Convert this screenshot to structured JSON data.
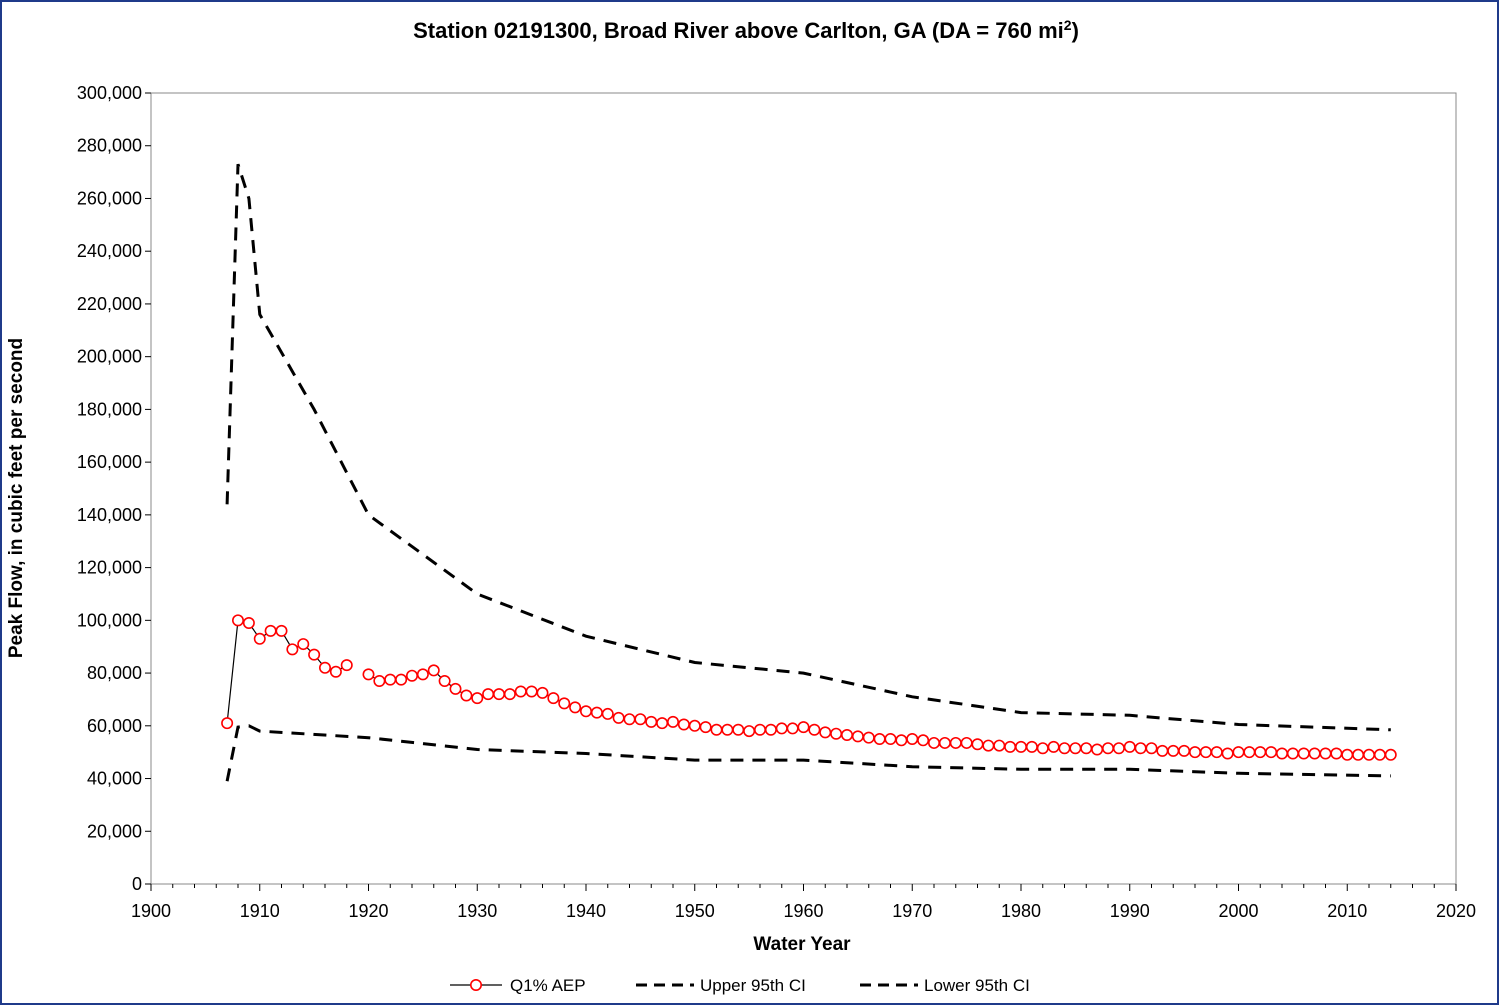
{
  "chart_data": {
    "type": "line",
    "title": "Station 02191300, Broad River above Carlton, GA (DA = 760 mi",
    "title_superscript": "2",
    "title_suffix": ")",
    "xlabel": "Water Year",
    "ylabel": "Peak Flow, in cubic feet per second",
    "xlim": [
      1900,
      2020
    ],
    "ylim": [
      0,
      300000
    ],
    "x_ticks": [
      1900,
      1910,
      1920,
      1930,
      1940,
      1950,
      1960,
      1970,
      1980,
      1990,
      2000,
      2010,
      2020
    ],
    "x_tick_labels": [
      "1900",
      "1910",
      "1920",
      "1930",
      "1940",
      "1950",
      "1960",
      "1970",
      "1980",
      "1990",
      "2000",
      "2010",
      "2020"
    ],
    "y_ticks": [
      0,
      20000,
      40000,
      60000,
      80000,
      100000,
      120000,
      140000,
      160000,
      180000,
      200000,
      220000,
      240000,
      260000,
      280000,
      300000
    ],
    "y_tick_labels": [
      "0",
      "20,000",
      "40,000",
      "60,000",
      "80,000",
      "100,000",
      "120,000",
      "140,000",
      "160,000",
      "180,000",
      "200,000",
      "220,000",
      "240,000",
      "260,000",
      "280,000",
      "300,000"
    ],
    "grid": false,
    "legend_position": "bottom",
    "series": [
      {
        "name": "Q1% AEP",
        "style": "solid-line-open-circles",
        "color": "#000000",
        "marker_color": "#ff0000",
        "segments": [
          {
            "x": [
              1907,
              1908,
              1909,
              1910,
              1911,
              1912,
              1913,
              1914,
              1915,
              1916,
              1917,
              1918
            ],
            "y": [
              61000,
              100000,
              99000,
              93000,
              96000,
              96000,
              89000,
              91000,
              87000,
              82000,
              80500,
              83000
            ]
          },
          {
            "x": [
              1920,
              1921,
              1922,
              1923,
              1924,
              1925,
              1926,
              1927,
              1928,
              1929,
              1930,
              1931,
              1932,
              1933,
              1934,
              1935,
              1936,
              1937,
              1938,
              1939,
              1940,
              1941,
              1942,
              1943,
              1944,
              1945,
              1946,
              1947,
              1948,
              1949,
              1950,
              1951,
              1952,
              1953,
              1954,
              1955,
              1956,
              1957,
              1958,
              1959,
              1960,
              1961,
              1962,
              1963,
              1964,
              1965,
              1966,
              1967,
              1968,
              1969,
              1970,
              1971,
              1972,
              1973,
              1974,
              1975,
              1976,
              1977,
              1978,
              1979,
              1980,
              1981,
              1982,
              1983,
              1984,
              1985,
              1986,
              1987,
              1988,
              1989,
              1990,
              1991,
              1992,
              1993,
              1994,
              1995,
              1996,
              1997,
              1998,
              1999,
              2000,
              2001,
              2002,
              2003,
              2004,
              2005,
              2006,
              2007,
              2008,
              2009,
              2010,
              2011,
              2012,
              2013,
              2014
            ],
            "y": [
              79500,
              77000,
              77500,
              77500,
              79000,
              79500,
              81000,
              77000,
              74000,
              71500,
              70500,
              72000,
              72000,
              72000,
              73000,
              73000,
              72500,
              70500,
              68500,
              67000,
              65500,
              65000,
              64500,
              63000,
              62500,
              62500,
              61500,
              61000,
              61500,
              60500,
              60000,
              59500,
              58500,
              58500,
              58500,
              58000,
              58500,
              58500,
              59000,
              59000,
              59500,
              58500,
              57500,
              57000,
              56500,
              56000,
              55500,
              55000,
              55000,
              54500,
              55000,
              54500,
              53500,
              53500,
              53500,
              53500,
              53000,
              52500,
              52500,
              52000,
              52000,
              52000,
              51500,
              52000,
              51500,
              51500,
              51500,
              51000,
              51500,
              51500,
              52000,
              51500,
              51500,
              50500,
              50500,
              50500,
              50000,
              50000,
              50000,
              49500,
              50000,
              50000,
              50000,
              50000,
              49500,
              49500,
              49500,
              49500,
              49500,
              49500,
              49000,
              49000,
              49000,
              49000,
              49000
            ]
          }
        ]
      },
      {
        "name": "Upper 95th CI",
        "style": "dashed",
        "color": "#000000",
        "x": [
          1907,
          1908,
          1909,
          1910,
          1915,
          1920,
          1930,
          1940,
          1950,
          1960,
          1970,
          1980,
          1990,
          2000,
          2014
        ],
        "y": [
          144000,
          273000,
          260000,
          216000,
          180000,
          140000,
          110000,
          94000,
          84000,
          80000,
          71000,
          65000,
          64000,
          60500,
          58500
        ]
      },
      {
        "name": "Lower 95th CI",
        "style": "dashed",
        "color": "#000000",
        "x": [
          1907,
          1908,
          1909,
          1910,
          1920,
          1930,
          1940,
          1950,
          1960,
          1970,
          1980,
          1990,
          2000,
          2014
        ],
        "y": [
          39000,
          59500,
          60000,
          58000,
          55500,
          51000,
          49500,
          47000,
          47000,
          44500,
          43500,
          43500,
          42000,
          41000
        ]
      }
    ]
  }
}
